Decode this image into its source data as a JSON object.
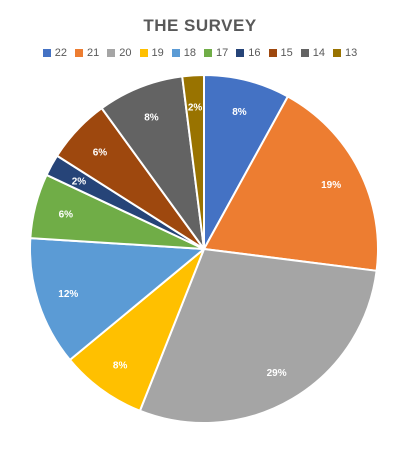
{
  "chart_data": {
    "type": "pie",
    "title": "THE SURVEY",
    "legend_position": "top",
    "categories": [
      "22",
      "21",
      "20",
      "19",
      "18",
      "17",
      "16",
      "15",
      "14",
      "13"
    ],
    "values": [
      8,
      19,
      29,
      8,
      12,
      6,
      2,
      6,
      8,
      2
    ],
    "labels": [
      "8%",
      "19%",
      "29%",
      "8%",
      "12%",
      "6%",
      "2%",
      "6%",
      "8%",
      "2%"
    ],
    "colors": [
      "#4472C4",
      "#ED7D31",
      "#A5A5A5",
      "#FFC000",
      "#5B9BD5",
      "#70AD47",
      "#264478",
      "#9E480E",
      "#636363",
      "#997300"
    ]
  }
}
